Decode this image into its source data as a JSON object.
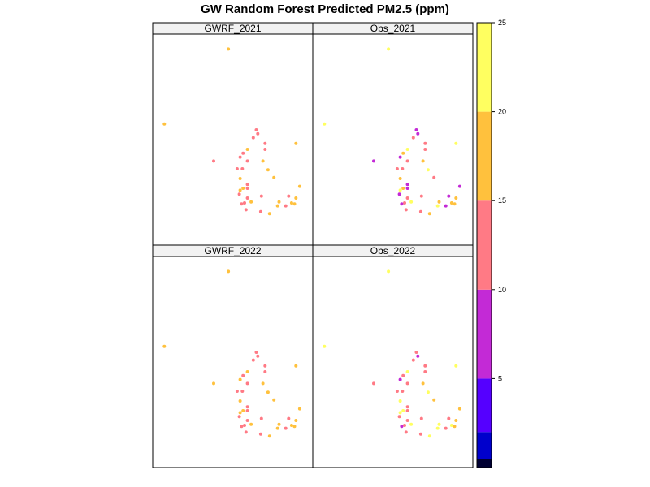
{
  "chart_data": {
    "type": "scatter",
    "title": "GW Random Forest Predicted PM2.5 (ppm)",
    "colorbar": {
      "ticks": [
        5,
        10,
        15,
        20,
        25
      ],
      "bands": [
        {
          "from": 0,
          "to": 0.5,
          "color": "#000033"
        },
        {
          "from": 0.5,
          "to": 2,
          "color": "#0000CC"
        },
        {
          "from": 2,
          "to": 5,
          "color": "#5500FF"
        },
        {
          "from": 5,
          "to": 10,
          "color": "#C32AD6"
        },
        {
          "from": 10,
          "to": 15,
          "color": "#FF7A85"
        },
        {
          "from": 15,
          "to": 20,
          "color": "#FFC13D"
        },
        {
          "from": 20,
          "to": 25,
          "color": "#FFFF60"
        }
      ],
      "range": [
        0,
        25
      ]
    },
    "panels": [
      {
        "name": "GWRF_2021",
        "values": [
          19,
          18,
          13,
          13,
          17,
          19,
          17,
          17,
          18,
          18,
          17,
          13,
          17,
          18,
          18,
          13,
          14,
          13,
          13,
          17,
          13,
          14,
          13,
          13,
          13,
          17,
          17,
          13,
          13,
          13,
          18,
          13,
          13,
          13,
          13,
          14,
          17,
          18,
          13,
          13
        ]
      },
      {
        "name": "Obs_2021",
        "values": [
          22,
          22,
          8,
          13,
          17,
          17,
          22,
          19,
          18,
          18,
          8,
          8,
          14,
          20,
          18,
          13,
          8,
          13,
          8,
          22,
          13,
          18,
          8,
          13,
          13,
          19,
          24,
          8,
          8,
          13,
          22,
          13,
          9,
          13,
          8,
          13,
          22,
          18,
          13,
          8
        ]
      },
      {
        "name": "GWRF_2022",
        "values": [
          19,
          18,
          18,
          13,
          17,
          19,
          18,
          18,
          17,
          18,
          18,
          13,
          17,
          18,
          18,
          13,
          14,
          13,
          13,
          17,
          13,
          14,
          17,
          13,
          13,
          17,
          17,
          13,
          13,
          13,
          18,
          13,
          13,
          13,
          13,
          13,
          17,
          18,
          13,
          13
        ]
      },
      {
        "name": "Obs_2022",
        "values": [
          22,
          22,
          13,
          13,
          22,
          22,
          22,
          22,
          22,
          18,
          18,
          13,
          17,
          22,
          18,
          13,
          8,
          13,
          13,
          22,
          13,
          14,
          8,
          13,
          13,
          22,
          22,
          13,
          13,
          13,
          22,
          13,
          8,
          13,
          13,
          13,
          22,
          18,
          13,
          13
        ]
      }
    ],
    "stations": [
      [
        0.47,
        0.035
      ],
      [
        0.035,
        0.42
      ],
      [
        0.37,
        0.61
      ],
      [
        0.69,
        0.87
      ],
      [
        0.57,
        0.75
      ],
      [
        0.75,
        0.88
      ],
      [
        0.805,
        0.84
      ],
      [
        0.815,
        0.82
      ],
      [
        0.9,
        0.825
      ],
      [
        0.93,
        0.8
      ],
      [
        0.955,
        0.74
      ],
      [
        0.88,
        0.79
      ],
      [
        0.78,
        0.695
      ],
      [
        0.74,
        0.655
      ],
      [
        0.705,
        0.61
      ],
      [
        0.72,
        0.55
      ],
      [
        0.67,
        0.47
      ],
      [
        0.64,
        0.49
      ],
      [
        0.66,
        0.45
      ],
      [
        0.6,
        0.55
      ],
      [
        0.6,
        0.61
      ],
      [
        0.57,
        0.57
      ],
      [
        0.55,
        0.59
      ],
      [
        0.53,
        0.65
      ],
      [
        0.565,
        0.65
      ],
      [
        0.55,
        0.7
      ],
      [
        0.55,
        0.76
      ],
      [
        0.545,
        0.78
      ],
      [
        0.6,
        0.73
      ],
      [
        0.6,
        0.8
      ],
      [
        0.625,
        0.82
      ],
      [
        0.58,
        0.825
      ],
      [
        0.56,
        0.83
      ],
      [
        0.59,
        0.86
      ],
      [
        0.6,
        0.75
      ],
      [
        0.72,
        0.52
      ],
      [
        0.93,
        0.52
      ],
      [
        0.92,
        0.83
      ],
      [
        0.695,
        0.79
      ],
      [
        0.86,
        0.84
      ]
    ],
    "legend": "right colorbar"
  }
}
